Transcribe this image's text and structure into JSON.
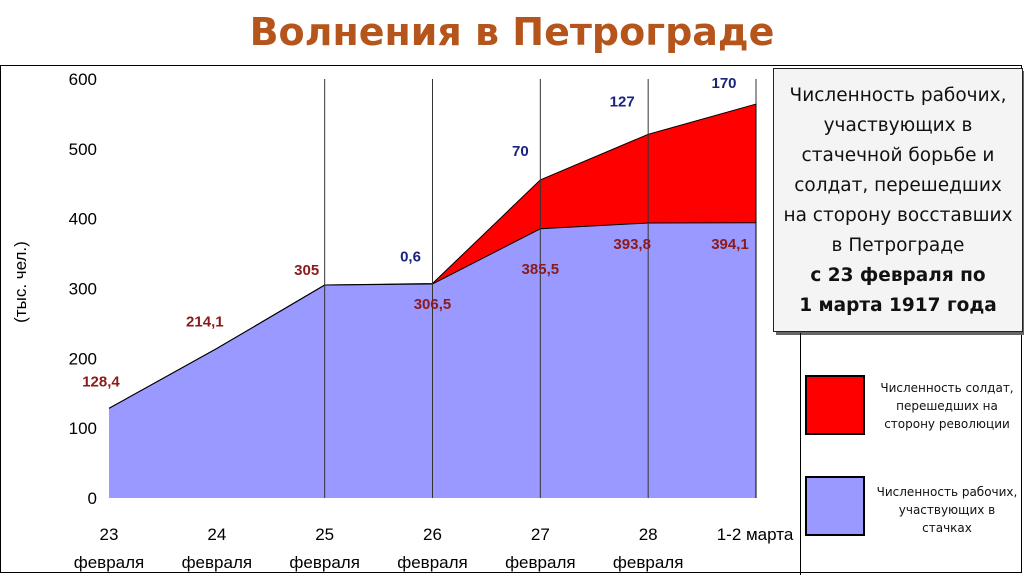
{
  "title": "Волнения в Петрограде",
  "info": {
    "lines": [
      "Численность рабочих,",
      "участвующих в",
      "стачечной борьбе и",
      "солдат, перешедших",
      "на сторону восставших",
      "в Петрограде"
    ],
    "bold_lines": [
      "с 23 февраля по",
      "1 марта 1917 года"
    ]
  },
  "legend": [
    {
      "label_lines": [
        "Численность солдат,",
        "перешедших на",
        "сторону революции"
      ],
      "color": "#ff0000"
    },
    {
      "label_lines": [
        "Численность рабочих,",
        "участвующих в",
        "стачках"
      ],
      "color": "#9999ff"
    }
  ],
  "chart_data": {
    "type": "area",
    "stacked": true,
    "ylabel": "(тыс. чел.)",
    "ylim": [
      0,
      600
    ],
    "yticks": [
      0,
      100,
      200,
      300,
      400,
      500,
      600
    ],
    "categories": [
      [
        "23",
        "февраля"
      ],
      [
        "24",
        "февраля"
      ],
      [
        "25",
        "февраля"
      ],
      [
        "26",
        "февраля"
      ],
      [
        "27",
        "февраля"
      ],
      [
        "28",
        "февраля"
      ],
      [
        "1-2 марта",
        ""
      ]
    ],
    "series": [
      {
        "name": "Численность рабочих, участвующих в стачках",
        "color": "#9999ff",
        "values": [
          128.4,
          214.1,
          305,
          306.5,
          385.5,
          393.8,
          394.1
        ],
        "labels": [
          "128,4",
          "214,1",
          "305",
          "306,5",
          "385,5",
          "393,8",
          "394,1"
        ],
        "label_color": "#8b1a1a"
      },
      {
        "name": "Численность солдат, перешедших на сторону революции",
        "color": "#ff0000",
        "values": [
          0,
          0,
          0,
          0.6,
          70,
          127,
          170
        ],
        "labels": [
          "",
          "",
          "",
          "0,6",
          "70",
          "127",
          "170"
        ],
        "label_color": "#1a237e"
      }
    ]
  }
}
